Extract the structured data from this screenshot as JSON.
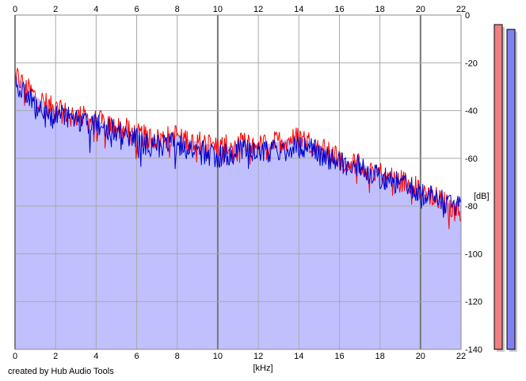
{
  "chart_data": {
    "type": "area",
    "title": "",
    "xlabel": "[kHz]",
    "ylabel": "[dB]",
    "xlim": [
      0,
      22
    ],
    "ylim": [
      -140,
      0
    ],
    "grid": true,
    "x_ticks": [
      0,
      2,
      4,
      6,
      8,
      10,
      12,
      14,
      16,
      18,
      20,
      22
    ],
    "y_ticks": [
      0,
      -20,
      -40,
      -60,
      -80,
      -100,
      -120,
      -140
    ],
    "x": [
      0,
      0.5,
      1,
      1.5,
      2,
      2.5,
      3,
      3.5,
      4,
      4.5,
      5,
      5.5,
      6,
      6.5,
      7,
      7.5,
      8,
      8.5,
      9,
      9.5,
      10,
      10.5,
      11,
      11.5,
      12,
      12.5,
      13,
      13.5,
      14,
      14.5,
      15,
      15.5,
      16,
      16.5,
      17,
      17.5,
      18,
      18.5,
      19,
      19.5,
      20,
      20.5,
      21,
      21.5,
      22
    ],
    "series": [
      {
        "color": "#ff0000",
        "values": [
          -25,
          -30,
          -34,
          -37,
          -40,
          -41,
          -42,
          -43,
          -44,
          -46,
          -47,
          -48,
          -50,
          -51,
          -52,
          -51,
          -50,
          -52,
          -53,
          -54,
          -55,
          -55,
          -54,
          -54,
          -55,
          -54,
          -53,
          -52,
          -51,
          -53,
          -55,
          -58,
          -60,
          -62,
          -62,
          -64,
          -66,
          -68,
          -69,
          -71,
          -73,
          -75,
          -78,
          -80,
          -83
        ]
      },
      {
        "color": "#0000cc",
        "values": [
          -28,
          -33,
          -37,
          -40,
          -42,
          -43,
          -44,
          -45,
          -46,
          -48,
          -49,
          -50,
          -52,
          -54,
          -55,
          -54,
          -54,
          -56,
          -57,
          -58,
          -59,
          -58,
          -57,
          -57,
          -58,
          -57,
          -57,
          -56,
          -55,
          -56,
          -58,
          -60,
          -61,
          -63,
          -64,
          -66,
          -68,
          -69,
          -71,
          -72,
          -74,
          -76,
          -78,
          -79,
          -79
        ]
      }
    ],
    "fill_color": "#c0c0ff",
    "level_meters": [
      {
        "color": "#f08080",
        "value": -4
      },
      {
        "color": "#8080f0",
        "value": -6
      }
    ]
  },
  "footer": {
    "credit": "created by Hub Audio Tools"
  }
}
